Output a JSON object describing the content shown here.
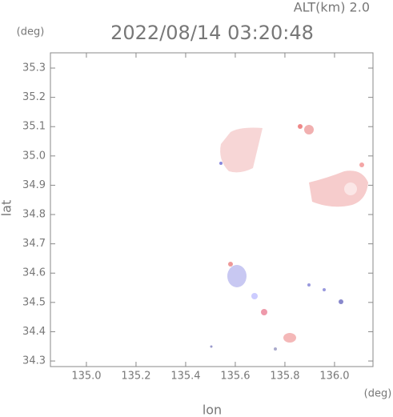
{
  "chart_data": {
    "type": "map",
    "title": "2022/08/14 03:20:48",
    "subtitle": "ALT(km) 2.0",
    "y_unit": "(deg)",
    "x_unit": "(deg)",
    "xlabel": "lon",
    "ylabel": "lat",
    "xlim": [
      134.855,
      136.155
    ],
    "ylim": [
      34.281,
      35.352
    ],
    "xticks": [
      {
        "value": 135.0,
        "label": "135.0"
      },
      135.2,
      135.4,
      135.6,
      135.8,
      {
        "value": 136.0,
        "label": "136.0"
      }
    ],
    "yticks": [
      34.3,
      34.4,
      34.5,
      34.6,
      34.7,
      34.8,
      34.9,
      {
        "value": 35.0,
        "label": "35.0"
      },
      35.1,
      35.2,
      35.3
    ]
  }
}
